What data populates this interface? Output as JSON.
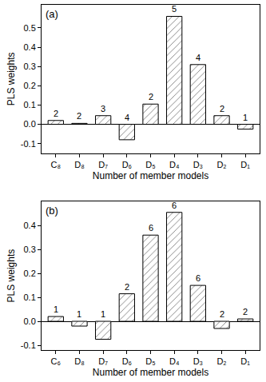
{
  "chart_data": [
    {
      "type": "bar",
      "title": "(a)",
      "x_label": "Number of member models",
      "y_label": "PLS weights",
      "categories": [
        "C₈",
        "D₈",
        "D₇",
        "D₆",
        "D₅",
        "D₄",
        "D₃",
        "D₂",
        "D₁"
      ],
      "values": [
        0.02,
        0.005,
        0.045,
        -0.08,
        0.105,
        0.56,
        0.31,
        0.045,
        -0.025
      ],
      "member_counts": [
        2,
        2,
        3,
        4,
        2,
        5,
        4,
        2,
        1
      ],
      "color": "#808080",
      "ylim": [
        -0.15,
        0.62
      ],
      "yticks": [
        -0.1,
        {
          "value": 0,
          "label": "0.0"
        },
        0.1,
        0.2,
        0.3,
        0.4,
        0.5
      ],
      "grid": false
    },
    {
      "type": "bar",
      "title": "(b)",
      "x_label": "Number of member models",
      "y_label": "PLS weights",
      "categories": [
        "C₆",
        "D₈",
        "D₇",
        "D₆",
        "D₅",
        "D₄",
        "D₃",
        "D₂",
        "D₁"
      ],
      "values": [
        0.02,
        -0.02,
        -0.075,
        0.115,
        0.36,
        0.455,
        0.15,
        -0.03,
        0.01
      ],
      "member_counts": [
        1,
        1,
        1,
        2,
        6,
        6,
        6,
        2,
        2
      ],
      "color": "#808080",
      "ylim": [
        -0.12,
        0.5
      ],
      "yticks": [
        -0.1,
        {
          "value": 0,
          "label": "0.0"
        },
        0.1,
        0.2,
        0.3,
        0.4
      ],
      "grid": false
    }
  ]
}
